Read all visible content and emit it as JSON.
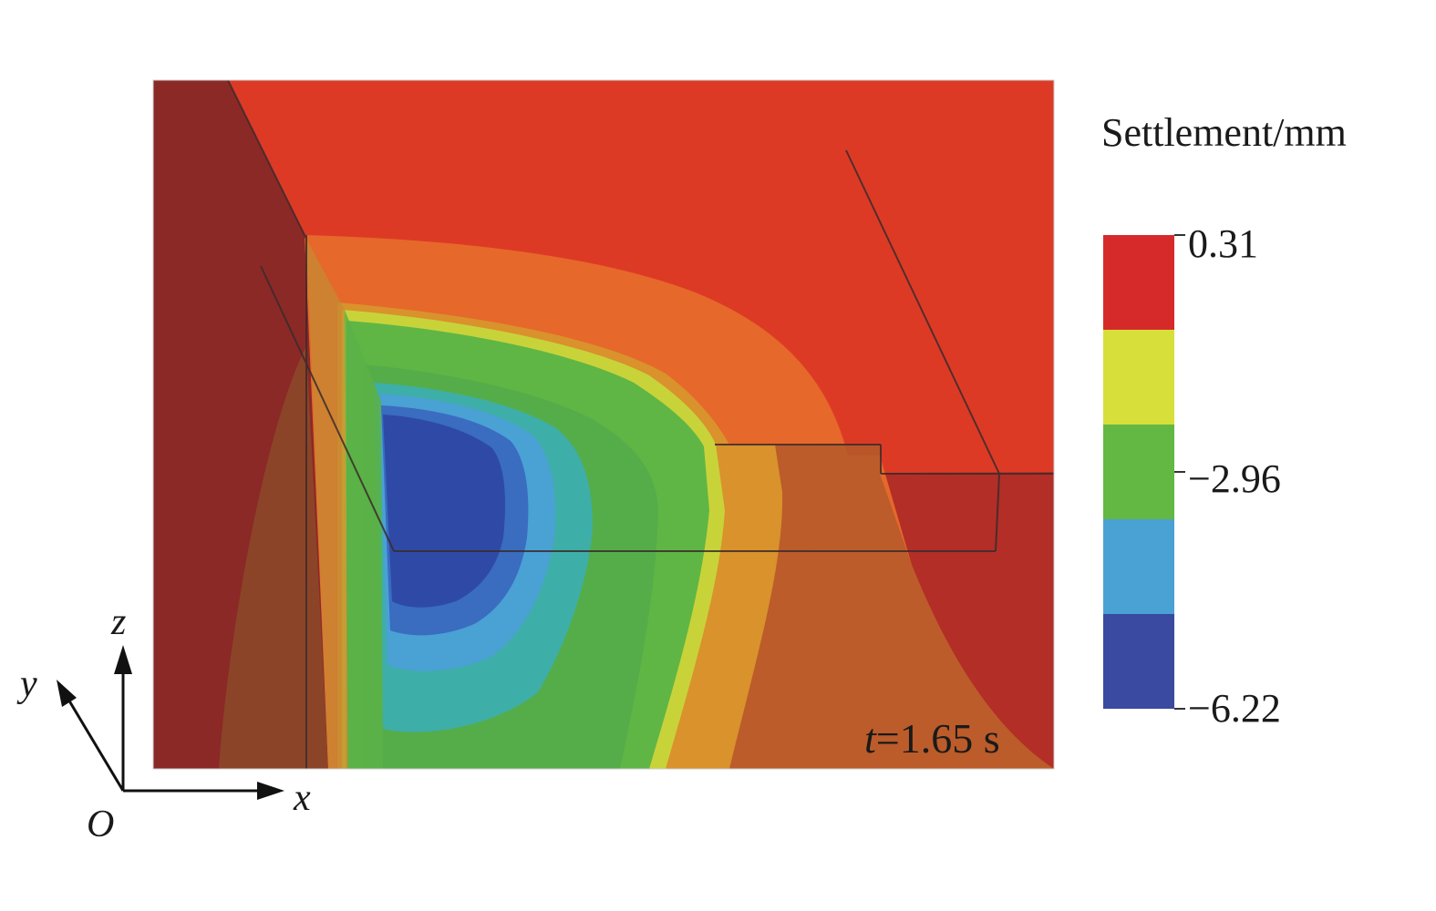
{
  "legend": {
    "title": "Settlement/mm",
    "ticks": [
      "0.31",
      "−2.96",
      "−6.22"
    ],
    "bands": [
      "#d62a2a",
      "#d7df3b",
      "#62b843",
      "#4aa1d4",
      "#3a4aa0"
    ]
  },
  "time": {
    "var": "t",
    "text": "=1.65 s"
  },
  "axes": {
    "x": "x",
    "y": "y",
    "z": "z",
    "origin": "O"
  },
  "colors": {
    "settlement_high": "#dd3a26",
    "settlement_mid_high": "#e5692b",
    "settlement_mid": "#5fb645",
    "settlement_low": "#2e4aa6",
    "side_face": "#8a2a26"
  }
}
